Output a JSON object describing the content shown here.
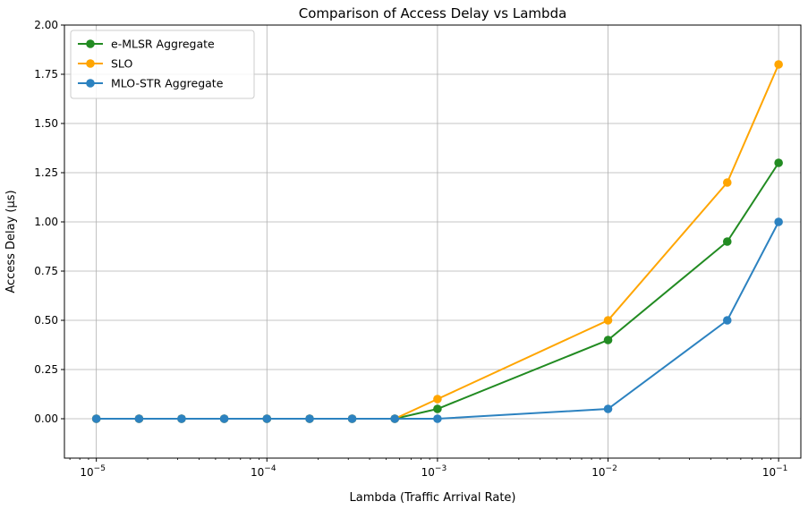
{
  "chart_data": {
    "type": "line",
    "title": "Comparison of Access Delay vs Lambda",
    "xlabel": "Lambda (Traffic Arrival Rate)",
    "ylabel": "Access Delay (µs)",
    "xscale": "log",
    "xlim": [
      6.5e-06,
      0.135
    ],
    "ylim": [
      -0.2,
      2.0
    ],
    "grid": true,
    "legend_position": "top-left",
    "x_ticks": [
      {
        "value": 1e-05,
        "base": "10",
        "exp": "−5"
      },
      {
        "value": 0.0001,
        "base": "10",
        "exp": "−4"
      },
      {
        "value": 0.001,
        "base": "10",
        "exp": "−3"
      },
      {
        "value": 0.01,
        "base": "10",
        "exp": "−2"
      },
      {
        "value": 0.1,
        "base": "10",
        "exp": "−1"
      }
    ],
    "y_ticks": [
      "0.00",
      "0.25",
      "0.50",
      "0.75",
      "1.00",
      "1.25",
      "1.50",
      "1.75",
      "2.00"
    ],
    "x": [
      1e-05,
      1.78e-05,
      3.16e-05,
      5.62e-05,
      0.0001,
      0.000178,
      0.000316,
      0.000562,
      0.001,
      0.01,
      0.05,
      0.1
    ],
    "series": [
      {
        "name": "e-MLSR Aggregate",
        "color": "#228b22",
        "values": [
          0,
          0,
          0,
          0,
          0,
          0,
          0,
          0,
          0.05,
          0.4,
          0.9,
          1.3
        ]
      },
      {
        "name": "SLO",
        "color": "#ffa500",
        "values": [
          0,
          0,
          0,
          0,
          0,
          0,
          0,
          0,
          0.1,
          0.5,
          1.2,
          1.8
        ]
      },
      {
        "name": "MLO-STR Aggregate",
        "color": "#2c82c0",
        "values": [
          0,
          0,
          0,
          0,
          0,
          0,
          0,
          0,
          0,
          0.05,
          0.5,
          1.0
        ]
      }
    ]
  }
}
